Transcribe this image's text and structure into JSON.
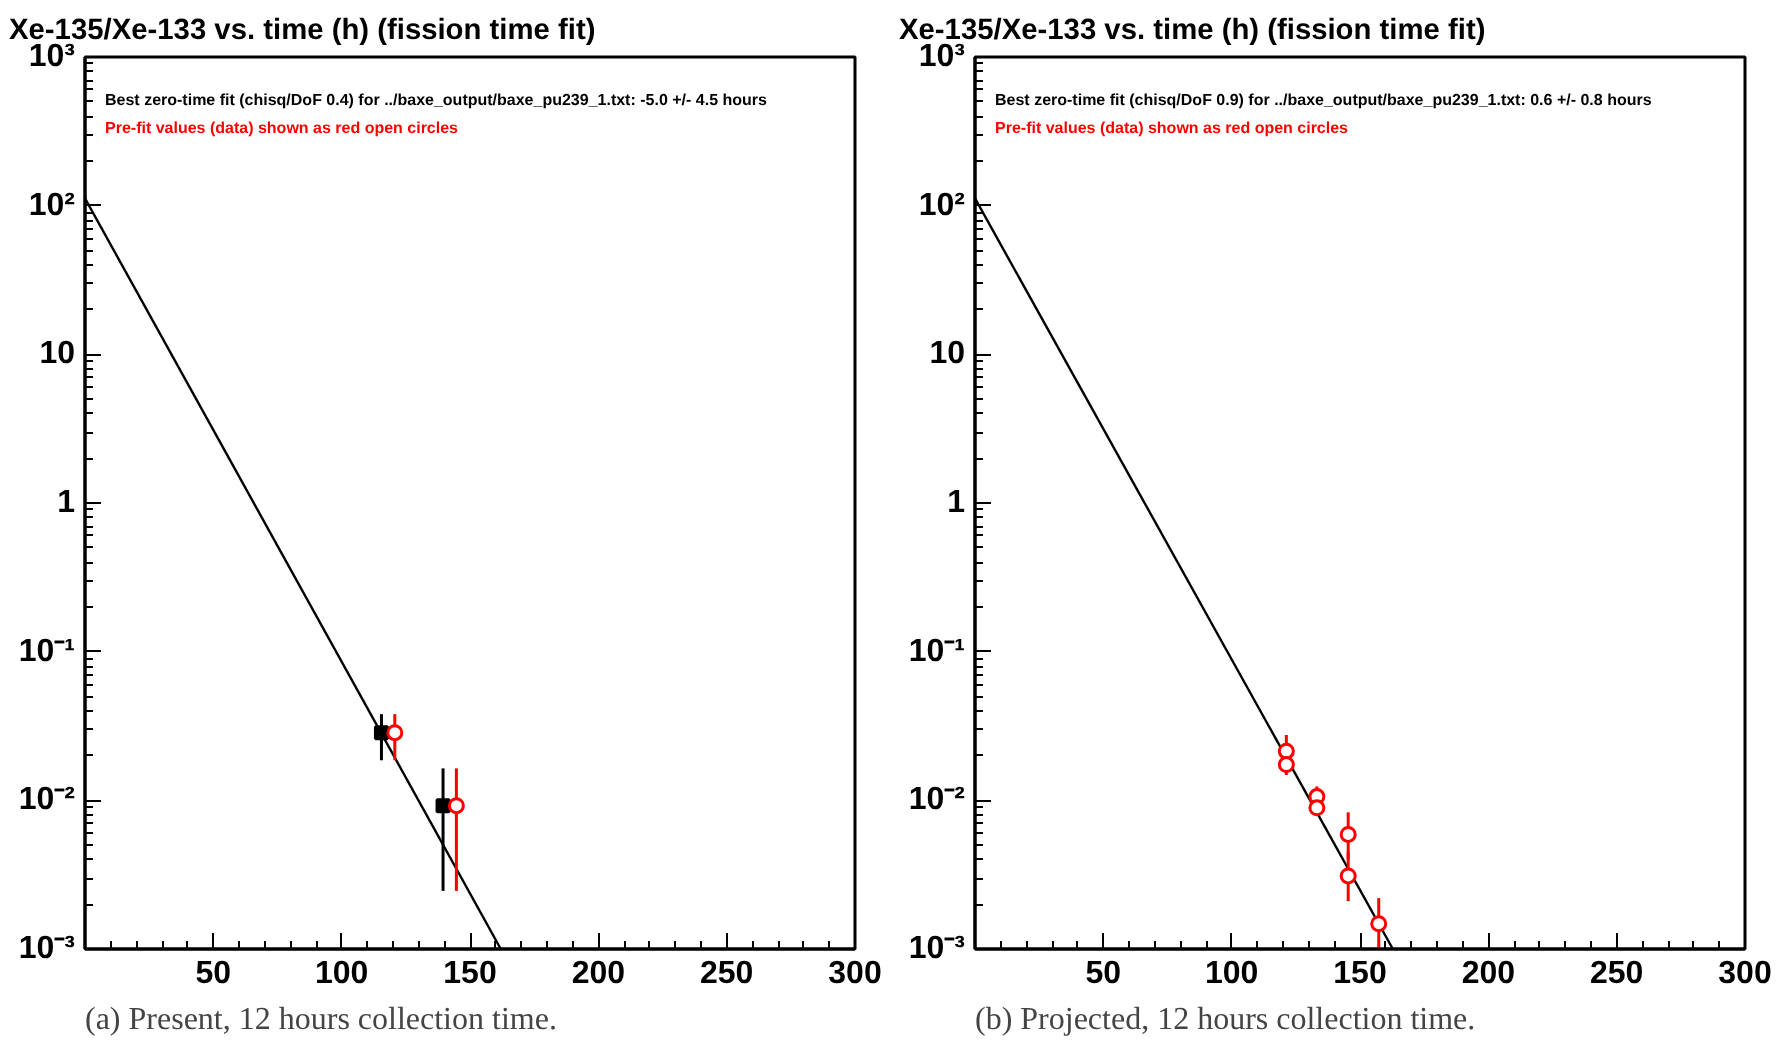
{
  "chart_data": [
    {
      "type": "scatter",
      "title": "Xe-135/Xe-133 vs. time (h) (fission time fit)",
      "subtitle": "(a) Present, 12 hours collection time.",
      "annotations": [
        "Best zero-time fit (chisq/DoF 0.4) for ../baxe_output/baxe_pu239_1.txt: -5.0 +/- 4.5 hours"
      ],
      "log": "y",
      "xlim": [
        0,
        300
      ],
      "xticks": [
        50,
        100,
        150,
        200,
        250,
        300
      ],
      "ylim": [
        0.001,
        1000
      ],
      "yticks": [
        {
          "value": 0.001,
          "label": "10⁻³"
        },
        {
          "value": 0.01,
          "label": "10⁻²"
        },
        {
          "value": 0.1,
          "label": "10⁻¹"
        },
        {
          "value": 1,
          "label": "1"
        },
        {
          "value": 10,
          "label": "10"
        },
        {
          "value": 100,
          "label": "10²"
        },
        {
          "value": 1000,
          "label": "10³"
        }
      ],
      "series": [
        {
          "type": "line",
          "color": "#000000",
          "x": [
            0,
            162
          ],
          "values": [
            112,
            0.001
          ],
          "marker": "none"
        },
        {
          "color": "#000000",
          "marker": "square",
          "x": [
            115.5,
            139.5
          ],
          "values": [
            0.0285,
            0.0092
          ],
          "errors": [
            [
              0.0186,
              0.038
            ],
            [
              0.00246,
              0.0164
            ]
          ]
        },
        {
          "name": "Pre-fit values (data) shown as red open circles",
          "color": "#ff0000",
          "marker": "circle",
          "x": [
            120.7,
            144.7
          ],
          "values": [
            0.0285,
            0.0092
          ],
          "errors": [
            [
              0.0186,
              0.038
            ],
            [
              0.00246,
              0.0164
            ]
          ]
        }
      ]
    },
    {
      "type": "scatter",
      "title": "Xe-135/Xe-133 vs. time (h) (fission time fit)",
      "subtitle": "(b) Projected, 12 hours collection time.",
      "annotations": [
        "Best zero-time fit (chisq/DoF 0.9) for ../baxe_output/baxe_pu239_1.txt: 0.6 +/- 0.8 hours"
      ],
      "log": "y",
      "xlim": [
        0,
        300
      ],
      "xticks": [
        50,
        100,
        150,
        200,
        250,
        300
      ],
      "ylim": [
        0.001,
        1000
      ],
      "yticks": [
        {
          "value": 0.001,
          "label": "10⁻³"
        },
        {
          "value": 0.01,
          "label": "10⁻²"
        },
        {
          "value": 0.1,
          "label": "10⁻¹"
        },
        {
          "value": 1,
          "label": "1"
        },
        {
          "value": 10,
          "label": "10"
        },
        {
          "value": 100,
          "label": "10²"
        },
        {
          "value": 1000,
          "label": "10³"
        }
      ],
      "series": [
        {
          "type": "line",
          "color": "#000000",
          "x": [
            0,
            162.8
          ],
          "values": [
            112,
            0.001
          ],
          "marker": "none"
        },
        {
          "name": "Pre-fit values (data) shown as red open circles",
          "color": "#ff0000",
          "marker": "circle",
          "x": [
            121.3,
            121.3,
            133.2,
            133.2,
            145.4,
            145.4,
            157.3
          ],
          "values": [
            0.0214,
            0.0174,
            0.0106,
            0.0089,
            0.0059,
            0.0031,
            0.00148
          ],
          "errors": [
            [
              0.017,
              0.0275
            ],
            [
              0.0148,
              0.021
            ],
            [
              0.0095,
              0.0124
            ],
            [
              0.0081,
              0.0098
            ],
            [
              0.004,
              0.0083
            ],
            [
              0.0021,
              0.0045
            ],
            [
              0.001,
              0.0022
            ]
          ]
        }
      ]
    }
  ]
}
